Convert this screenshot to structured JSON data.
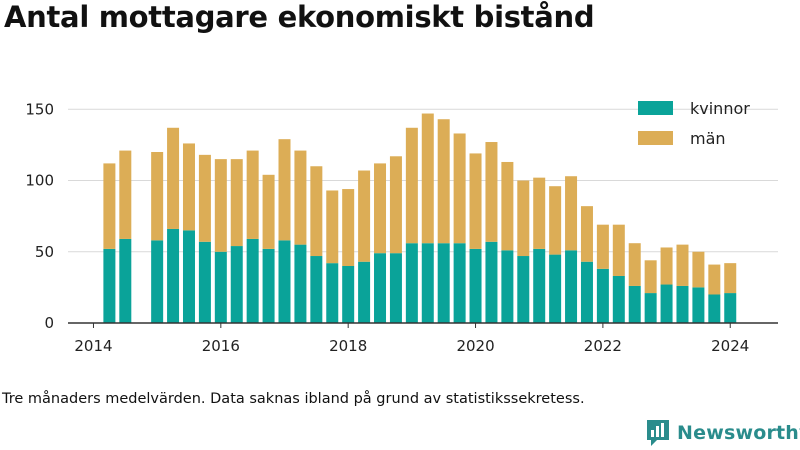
{
  "title": "Antal mottagare ekonomiskt bistånd",
  "footnote": "Tre månaders medelvärden. Data saknas ibland på grund av statistikssekretess.",
  "brand": {
    "name": "Newsworthy",
    "icon": "newsworthy-logo-icon",
    "color": "#2a8c8c"
  },
  "chart_data": {
    "type": "bar",
    "stacked": true,
    "x_label": "",
    "y_label": "",
    "ylim": [
      0,
      160
    ],
    "y_ticks": [
      0,
      50,
      100,
      150
    ],
    "x_ticks": [
      2014,
      2016,
      2018,
      2020,
      2022,
      2024
    ],
    "x_range": [
      2013.6,
      2024.75
    ],
    "grid": "horizontal",
    "legend_position": "top-right",
    "x": [
      2014.25,
      2014.5,
      2015.0,
      2015.25,
      2015.5,
      2015.75,
      2016.0,
      2016.25,
      2016.5,
      2016.75,
      2017.0,
      2017.25,
      2017.5,
      2017.75,
      2018.0,
      2018.25,
      2018.5,
      2018.75,
      2019.0,
      2019.25,
      2019.5,
      2019.75,
      2020.0,
      2020.25,
      2020.5,
      2020.75,
      2021.0,
      2021.25,
      2021.5,
      2021.75,
      2022.0,
      2022.25,
      2022.5,
      2022.75,
      2023.0,
      2023.25,
      2023.5,
      2023.75,
      2024.0
    ],
    "series": [
      {
        "name": "kvinnor",
        "color": "#0aa399",
        "values": [
          52,
          59,
          58,
          66,
          65,
          57,
          50,
          54,
          59,
          52,
          58,
          55,
          47,
          42,
          40,
          43,
          49,
          49,
          56,
          56,
          56,
          56,
          52,
          57,
          51,
          47,
          52,
          48,
          51,
          43,
          38,
          33,
          26,
          21,
          27,
          26,
          25,
          20,
          21
        ]
      },
      {
        "name": "män",
        "color": "#dcad56",
        "values": [
          60,
          62,
          62,
          71,
          61,
          61,
          65,
          61,
          62,
          52,
          71,
          66,
          63,
          51,
          54,
          64,
          63,
          68,
          81,
          91,
          87,
          77,
          67,
          70,
          62,
          53,
          50,
          48,
          52,
          39,
          31,
          36,
          30,
          23,
          26,
          29,
          25,
          21,
          21
        ]
      }
    ]
  }
}
